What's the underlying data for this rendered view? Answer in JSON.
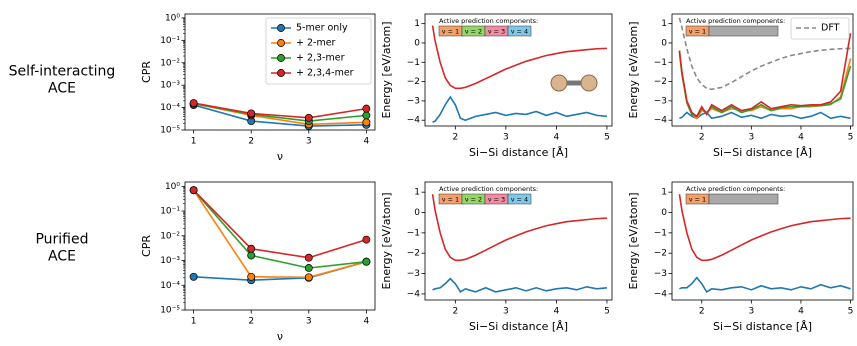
{
  "row_labels": [
    [
      "Self-interacting",
      "ACE"
    ],
    [
      "Purified",
      "ACE"
    ]
  ],
  "chart_data": [
    {
      "type": "line",
      "log_y": true,
      "markers": true,
      "xlabel": "ν",
      "ylabel": "CPR",
      "x": [
        1,
        2,
        3,
        4
      ],
      "xlim": [
        0.85,
        4.15
      ],
      "xticks": [
        1,
        2,
        3,
        4
      ],
      "ylim": [
        1e-05,
        1.5
      ],
      "yticks": [
        {
          "value": 1e-05,
          "label": "10⁻⁵"
        },
        {
          "value": 0.0001,
          "label": "10⁻⁴"
        },
        {
          "value": 0.001,
          "label": "10⁻³"
        },
        {
          "value": 0.01,
          "label": "10⁻²"
        },
        {
          "value": 0.1,
          "label": "10⁻¹"
        },
        {
          "value": 1,
          "label": "10⁰"
        }
      ],
      "legend": "upper right",
      "series": [
        {
          "name": "5-mer only",
          "color": "#1f77b4",
          "values": [
            0.00013,
            2.5e-05,
            1.5e-05,
            1.7e-05
          ]
        },
        {
          "name": "+ 2-mer",
          "color": "#ff7f0e",
          "values": [
            0.00015,
            4.5e-05,
            1.8e-05,
            2.2e-05
          ]
        },
        {
          "name": "+ 2,3-mer",
          "color": "#2ca02c",
          "values": [
            0.00015,
            5e-05,
            2.5e-05,
            4.5e-05
          ]
        },
        {
          "name": "+ 2,3,4-mer",
          "color": "#d62728",
          "values": [
            0.00016,
            5.5e-05,
            3.5e-05,
            9e-05
          ]
        }
      ]
    },
    {
      "type": "line",
      "xlabel": "Si−Si distance [Å]",
      "ylabel": "Energy [eV/atom]",
      "x": [
        1.55,
        1.6,
        1.7,
        1.8,
        1.9,
        2.0,
        2.1,
        2.2,
        2.4,
        2.6,
        2.8,
        3.0,
        3.2,
        3.4,
        3.6,
        3.8,
        4.0,
        4.2,
        4.4,
        4.6,
        4.8,
        5.0
      ],
      "xlim": [
        1.4,
        5.1
      ],
      "xticks": [
        2,
        3,
        4,
        5
      ],
      "ylim": [
        -4.3,
        1.5
      ],
      "yticks": [
        {
          "value": -4,
          "label": "−4"
        },
        {
          "value": -3,
          "label": "−3"
        },
        {
          "value": -2,
          "label": "−2"
        },
        {
          "value": -1,
          "label": "−1"
        },
        0,
        1
      ],
      "annotation": {
        "title": "Active prediction components:",
        "segments": [
          {
            "label": "ν = 1",
            "color": "#f4a06a"
          },
          {
            "label": "ν = 2",
            "color": "#96d46c"
          },
          {
            "label": "ν = 3",
            "color": "#f28ca2"
          },
          {
            "label": "ν = 4",
            "color": "#80c8e8"
          }
        ]
      },
      "series": [
        {
          "color": "#d62728",
          "values": [
            0.9,
            0.1,
            -1.0,
            -1.8,
            -2.2,
            -2.35,
            -2.35,
            -2.3,
            -2.1,
            -1.85,
            -1.6,
            -1.35,
            -1.15,
            -0.95,
            -0.8,
            -0.65,
            -0.55,
            -0.45,
            -0.4,
            -0.35,
            -0.3,
            -0.28
          ]
        },
        {
          "color": "#1f77b4",
          "values": [
            -4.1,
            -4.05,
            -3.7,
            -3.2,
            -2.8,
            -3.2,
            -3.9,
            -4.0,
            -3.8,
            -3.7,
            -3.6,
            -3.75,
            -3.65,
            -3.7,
            -3.55,
            -3.75,
            -3.6,
            -3.8,
            -3.7,
            -3.6,
            -3.75,
            -3.8
          ]
        }
      ]
    },
    {
      "type": "line",
      "xlabel": "Si−Si distance [Å]",
      "ylabel": "Energy [eV/atom]",
      "x": [
        1.55,
        1.6,
        1.7,
        1.8,
        1.9,
        2.0,
        2.1,
        2.2,
        2.4,
        2.6,
        2.8,
        3.0,
        3.2,
        3.4,
        3.6,
        3.8,
        4.0,
        4.2,
        4.4,
        4.6,
        4.8,
        5.0
      ],
      "xlim": [
        1.4,
        5.05
      ],
      "xticks": [
        2,
        3,
        4,
        5
      ],
      "ylim": [
        -4.3,
        1.5
      ],
      "yticks": [
        {
          "value": -4,
          "label": "−4"
        },
        {
          "value": -3,
          "label": "−3"
        },
        {
          "value": -2,
          "label": "−2"
        },
        {
          "value": -1,
          "label": "−1"
        },
        0,
        1
      ],
      "annotation": {
        "title": "Active prediction components:",
        "segments": [
          {
            "label": "ν = 1",
            "color": "#f4a06a"
          }
        ],
        "inactive_color": "#a9a9a9"
      },
      "legend": "upper right",
      "series": [
        {
          "name": "DFT",
          "color": "#888888",
          "dashed": true,
          "values": [
            1.3,
            0.8,
            -0.3,
            -1.2,
            -1.8,
            -2.15,
            -2.35,
            -2.4,
            -2.3,
            -2.05,
            -1.75,
            -1.45,
            -1.2,
            -1.0,
            -0.8,
            -0.65,
            -0.55,
            -0.45,
            -0.38,
            -0.33,
            -0.3,
            -0.28
          ]
        },
        {
          "color": "#1f77b4",
          "values": [
            -3.9,
            -3.85,
            -3.6,
            -3.8,
            -3.9,
            -3.7,
            -3.6,
            -3.9,
            -3.8,
            -3.6,
            -3.85,
            -3.75,
            -3.9,
            -3.7,
            -3.8,
            -3.75,
            -3.9,
            -3.8,
            -3.6,
            -3.9,
            -3.8,
            -3.9
          ]
        },
        {
          "color": "#ff7f0e",
          "values": [
            -0.5,
            -1.6,
            -3.1,
            -3.7,
            -3.9,
            -3.5,
            -3.6,
            -3.4,
            -3.6,
            -3.4,
            -3.5,
            -3.5,
            -3.3,
            -3.5,
            -3.4,
            -3.4,
            -3.3,
            -3.3,
            -3.25,
            -3.2,
            -2.8,
            -0.8
          ]
        },
        {
          "color": "#2ca02c",
          "values": [
            -0.4,
            -1.6,
            -3.1,
            -3.7,
            -3.8,
            -3.4,
            -3.6,
            -3.3,
            -3.6,
            -3.3,
            -3.6,
            -3.45,
            -3.2,
            -3.5,
            -3.35,
            -3.3,
            -3.3,
            -3.25,
            -3.25,
            -3.15,
            -2.9,
            -1.2
          ]
        },
        {
          "color": "#d62728",
          "values": [
            -0.4,
            -1.5,
            -3.0,
            -3.6,
            -3.8,
            -3.3,
            -3.7,
            -3.2,
            -3.5,
            -3.2,
            -3.5,
            -3.4,
            -3.05,
            -3.4,
            -3.3,
            -3.2,
            -3.25,
            -3.2,
            -3.2,
            -3.05,
            -2.5,
            0.5
          ]
        }
      ]
    },
    {
      "type": "line",
      "log_y": true,
      "markers": true,
      "xlabel": "ν",
      "ylabel": "CPR",
      "x": [
        1,
        2,
        3,
        4
      ],
      "xlim": [
        0.85,
        4.15
      ],
      "xticks": [
        1,
        2,
        3,
        4
      ],
      "ylim": [
        1e-05,
        1.5
      ],
      "yticks": [
        {
          "value": 1e-05,
          "label": "10⁻⁵"
        },
        {
          "value": 0.0001,
          "label": "10⁻⁴"
        },
        {
          "value": 0.001,
          "label": "10⁻³"
        },
        {
          "value": 0.01,
          "label": "10⁻²"
        },
        {
          "value": 0.1,
          "label": "10⁻¹"
        },
        {
          "value": 1,
          "label": "10⁰"
        }
      ],
      "series": [
        {
          "color": "#1f77b4",
          "values": [
            0.00022,
            0.00016,
            0.0002,
            0.0009
          ]
        },
        {
          "color": "#ff7f0e",
          "values": [
            0.7,
            0.00022,
            0.00021,
            0.0009
          ]
        },
        {
          "color": "#2ca02c",
          "values": [
            0.7,
            0.0016,
            0.0005,
            0.0009
          ]
        },
        {
          "color": "#d62728",
          "values": [
            0.7,
            0.003,
            0.0013,
            0.007
          ]
        }
      ]
    },
    {
      "type": "line",
      "xlabel": "Si−Si distance [Å]",
      "ylabel": "Energy [eV/atom]",
      "x": [
        1.55,
        1.6,
        1.7,
        1.8,
        1.9,
        2.0,
        2.1,
        2.2,
        2.4,
        2.6,
        2.8,
        3.0,
        3.2,
        3.4,
        3.6,
        3.8,
        4.0,
        4.2,
        4.4,
        4.6,
        4.8,
        5.0
      ],
      "xlim": [
        1.4,
        5.1
      ],
      "xticks": [
        2,
        3,
        4,
        5
      ],
      "ylim": [
        -4.3,
        1.5
      ],
      "yticks": [
        {
          "value": -4,
          "label": "−4"
        },
        {
          "value": -3,
          "label": "−3"
        },
        {
          "value": -2,
          "label": "−2"
        },
        {
          "value": -1,
          "label": "−1"
        },
        0,
        1
      ],
      "annotation": {
        "title": "Active prediction components:",
        "segments": [
          {
            "label": "ν = 1",
            "color": "#f4a06a"
          },
          {
            "label": "ν = 2",
            "color": "#96d46c"
          },
          {
            "label": "ν = 3",
            "color": "#f28ca2"
          },
          {
            "label": "ν = 4",
            "color": "#80c8e8"
          }
        ]
      },
      "series": [
        {
          "color": "#d62728",
          "values": [
            0.9,
            0.1,
            -1.0,
            -1.8,
            -2.2,
            -2.35,
            -2.35,
            -2.3,
            -2.1,
            -1.85,
            -1.6,
            -1.35,
            -1.15,
            -0.95,
            -0.8,
            -0.65,
            -0.55,
            -0.45,
            -0.4,
            -0.35,
            -0.3,
            -0.28
          ]
        },
        {
          "color": "#1f77b4",
          "values": [
            -3.8,
            -3.75,
            -3.7,
            -3.5,
            -3.25,
            -3.5,
            -3.9,
            -3.75,
            -3.9,
            -3.7,
            -3.9,
            -3.8,
            -3.7,
            -3.85,
            -3.7,
            -3.85,
            -3.75,
            -3.7,
            -3.8,
            -3.65,
            -3.75,
            -3.7
          ]
        }
      ]
    },
    {
      "type": "line",
      "xlabel": "Si−Si distance [Å]",
      "ylabel": "Energy [eV/atom]",
      "x": [
        1.55,
        1.6,
        1.7,
        1.8,
        1.9,
        2.0,
        2.1,
        2.2,
        2.4,
        2.6,
        2.8,
        3.0,
        3.2,
        3.4,
        3.6,
        3.8,
        4.0,
        4.2,
        4.4,
        4.6,
        4.8,
        5.0
      ],
      "xlim": [
        1.4,
        5.05
      ],
      "xticks": [
        2,
        3,
        4,
        5
      ],
      "ylim": [
        -4.3,
        1.5
      ],
      "yticks": [
        {
          "value": -4,
          "label": "−4"
        },
        {
          "value": -3,
          "label": "−3"
        },
        {
          "value": -2,
          "label": "−2"
        },
        {
          "value": -1,
          "label": "−1"
        },
        0,
        1
      ],
      "annotation": {
        "title": "Active prediction components:",
        "segments": [
          {
            "label": "ν = 1",
            "color": "#f4a06a"
          }
        ],
        "inactive_color": "#a9a9a9"
      },
      "series": [
        {
          "color": "#d62728",
          "values": [
            0.9,
            0.1,
            -1.0,
            -1.8,
            -2.2,
            -2.35,
            -2.35,
            -2.3,
            -2.1,
            -1.85,
            -1.6,
            -1.35,
            -1.15,
            -0.95,
            -0.8,
            -0.65,
            -0.55,
            -0.45,
            -0.4,
            -0.35,
            -0.3,
            -0.28
          ]
        },
        {
          "color": "#1f77b4",
          "values": [
            -3.75,
            -3.7,
            -3.7,
            -3.5,
            -3.2,
            -3.5,
            -3.9,
            -3.75,
            -3.8,
            -3.7,
            -3.65,
            -3.8,
            -3.6,
            -3.75,
            -3.7,
            -3.8,
            -3.65,
            -3.75,
            -3.55,
            -3.7,
            -3.6,
            -3.75
          ]
        }
      ]
    }
  ]
}
